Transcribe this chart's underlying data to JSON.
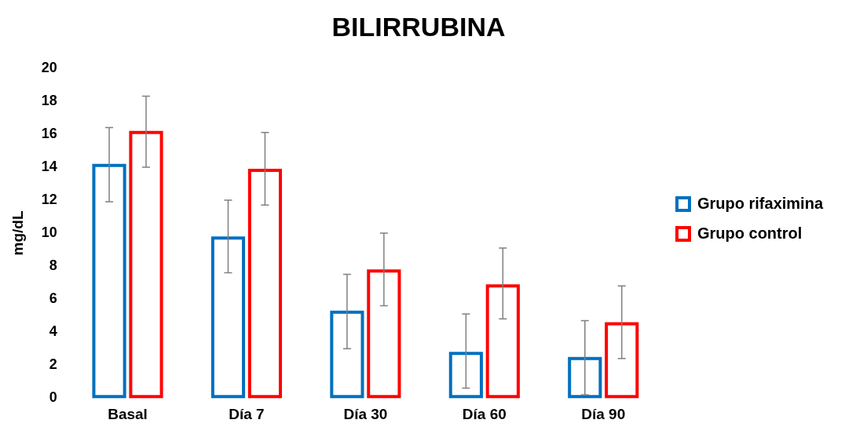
{
  "chart_data": {
    "type": "bar",
    "title": "BILIRRUBINA",
    "ylabel": "mg/dL",
    "categories": [
      "Basal",
      "Día 7",
      "Día 30",
      "Día 60",
      "Día 90"
    ],
    "series": [
      {
        "name": "Grupo rifaximina",
        "color": "#0070c0",
        "values": [
          14.2,
          9.8,
          5.3,
          2.8,
          2.5
        ],
        "errors": [
          [
            11.9,
            16.4
          ],
          [
            7.6,
            12.0
          ],
          [
            3.0,
            7.5
          ],
          [
            0.6,
            5.1
          ],
          [
            0.2,
            4.7
          ]
        ]
      },
      {
        "name": "Grupo control",
        "color": "#ff0000",
        "values": [
          16.2,
          13.9,
          7.8,
          6.9,
          4.6
        ],
        "errors": [
          [
            14.0,
            18.3
          ],
          [
            11.7,
            16.1
          ],
          [
            5.6,
            10.0
          ],
          [
            4.8,
            9.1
          ],
          [
            2.4,
            6.8
          ]
        ]
      }
    ],
    "ylim": [
      0,
      20
    ],
    "yticks": [
      0,
      2,
      4,
      6,
      8,
      10,
      12,
      14,
      16,
      18,
      20
    ],
    "grid": false,
    "legend": "right"
  }
}
